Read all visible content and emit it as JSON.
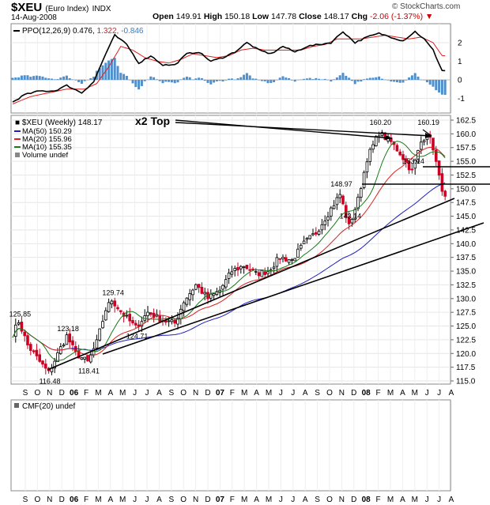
{
  "header": {
    "symbol": "$XEU",
    "index_name": "(Euro Index)",
    "exchange": "INDX",
    "date": "14-Aug-2008",
    "open_label": "Open",
    "open_value": "149.91",
    "high_label": "High",
    "high_value": "150.18",
    "low_label": "Low",
    "low_value": "147.78",
    "close_label": "Close",
    "close_value": "148.17",
    "chg_label": "Chg",
    "chg_value": "-2.06 (-1.37%)",
    "logo": "© StockCharts.com"
  },
  "ppo_legend": {
    "name": "PPO(12,26,9)",
    "v1": "0.476,",
    "v2": "1.322,",
    "v3": "-0.846"
  },
  "price_legend": {
    "title": "$XEU (Weekly) 148.17",
    "ma50": "MA(50) 150.29",
    "ma20": "MA(20) 155.96",
    "ma10": "MA(10) 155.35",
    "volume": "Volume undef"
  },
  "cmf_legend": "CMF(20) undef",
  "annotation": "x2 Top",
  "colors": {
    "up": "#000000",
    "down": "#cc0022",
    "ma50": "#1f1fbf",
    "ma20": "#dd2020",
    "ma10": "#1a7a1a",
    "hist": "#4f8fcc",
    "ppo_signal": "#dd2020"
  },
  "chart_data": {
    "type": "candlestick",
    "x_labels": [
      "S",
      "O",
      "N",
      "D",
      "06",
      "F",
      "M",
      "A",
      "M",
      "J",
      "J",
      "A",
      "S",
      "O",
      "N",
      "D",
      "07",
      "F",
      "M",
      "A",
      "M",
      "J",
      "J",
      "A",
      "S",
      "O",
      "N",
      "D",
      "08",
      "F",
      "M",
      "A",
      "M",
      "J",
      "J",
      "A"
    ],
    "year_labels": [
      "06",
      "07",
      "08"
    ],
    "price_axis": {
      "ylim": [
        115.0,
        162.5
      ],
      "ticks": [
        "162.5",
        "160.0",
        "157.5",
        "155.0",
        "152.5",
        "150.0",
        "147.5",
        "145.0",
        "142.5",
        "140.0",
        "137.5",
        "135.0",
        "132.5",
        "130.0",
        "127.5",
        "125.0",
        "122.5",
        "120.0",
        "117.5",
        "115.0"
      ]
    },
    "ppo_axis": {
      "ylim": [
        -1.6,
        3.0
      ],
      "ticks": [
        "2",
        "1",
        "0",
        "-1"
      ]
    },
    "price_labels": [
      {
        "text": "125.85",
        "week": 2,
        "value": 125.85
      },
      {
        "text": "116.48",
        "week": 12,
        "value": 116.48
      },
      {
        "text": "123.18",
        "week": 18,
        "value": 123.18
      },
      {
        "text": "118.41",
        "week": 25,
        "value": 118.41
      },
      {
        "text": "129.74",
        "week": 33,
        "value": 129.74
      },
      {
        "text": "124.71",
        "week": 41,
        "value": 124.71
      },
      {
        "text": "148.97",
        "week": 109,
        "value": 148.97
      },
      {
        "text": "143.14",
        "week": 112,
        "value": 143.14
      },
      {
        "text": "160.20",
        "week": 122,
        "value": 160.2
      },
      {
        "text": "160.19",
        "week": 138,
        "value": 160.19
      },
      {
        "text": "153.14",
        "week": 133,
        "value": 153.14
      }
    ],
    "close_anchors": [
      [
        0,
        123.5
      ],
      [
        2,
        125.85
      ],
      [
        5,
        121.5
      ],
      [
        9,
        118.5
      ],
      [
        12,
        116.48
      ],
      [
        16,
        121.0
      ],
      [
        18,
        123.18
      ],
      [
        21,
        120.0
      ],
      [
        25,
        118.41
      ],
      [
        28,
        122.0
      ],
      [
        31,
        128.0
      ],
      [
        33,
        129.74
      ],
      [
        37,
        127.0
      ],
      [
        41,
        124.71
      ],
      [
        45,
        127.5
      ],
      [
        50,
        126.0
      ],
      [
        54,
        125.5
      ],
      [
        57,
        129.5
      ],
      [
        61,
        132.5
      ],
      [
        65,
        130.0
      ],
      [
        69,
        131.5
      ],
      [
        73,
        135.0
      ],
      [
        77,
        136.0
      ],
      [
        81,
        134.5
      ],
      [
        85,
        135.0
      ],
      [
        89,
        137.5
      ],
      [
        93,
        137.0
      ],
      [
        97,
        140.0
      ],
      [
        101,
        142.0
      ],
      [
        105,
        145.5
      ],
      [
        109,
        148.97
      ],
      [
        112,
        143.14
      ],
      [
        115,
        148.0
      ],
      [
        118,
        155.5
      ],
      [
        122,
        160.2
      ],
      [
        126,
        158.5
      ],
      [
        129,
        156.5
      ],
      [
        133,
        153.14
      ],
      [
        136,
        158.5
      ],
      [
        138,
        160.19
      ],
      [
        140,
        157.5
      ],
      [
        142,
        152.0
      ],
      [
        144,
        148.17
      ]
    ],
    "ppo_anchors": [
      [
        0,
        -1.2
      ],
      [
        4,
        -0.8
      ],
      [
        9,
        -0.6
      ],
      [
        14,
        -0.6
      ],
      [
        18,
        -0.3
      ],
      [
        23,
        -0.7
      ],
      [
        27,
        -0.1
      ],
      [
        31,
        1.4
      ],
      [
        34,
        2.4
      ],
      [
        38,
        1.9
      ],
      [
        42,
        0.9
      ],
      [
        46,
        1.3
      ],
      [
        50,
        0.8
      ],
      [
        54,
        0.8
      ],
      [
        58,
        1.4
      ],
      [
        62,
        1.5
      ],
      [
        66,
        1.0
      ],
      [
        70,
        1.2
      ],
      [
        74,
        1.5
      ],
      [
        78,
        2.0
      ],
      [
        82,
        1.6
      ],
      [
        86,
        1.4
      ],
      [
        90,
        1.8
      ],
      [
        94,
        1.5
      ],
      [
        98,
        1.8
      ],
      [
        102,
        1.9
      ],
      [
        106,
        2.0
      ],
      [
        110,
        2.6
      ],
      [
        114,
        2.0
      ],
      [
        118,
        2.3
      ],
      [
        122,
        2.5
      ],
      [
        126,
        2.3
      ],
      [
        130,
        2.1
      ],
      [
        134,
        2.6
      ],
      [
        137,
        2.2
      ],
      [
        140,
        1.6
      ],
      [
        143,
        0.5
      ]
    ],
    "signal_anchors": [
      [
        0,
        -1.3
      ],
      [
        6,
        -0.9
      ],
      [
        12,
        -0.7
      ],
      [
        18,
        -0.5
      ],
      [
        24,
        -0.5
      ],
      [
        28,
        -0.2
      ],
      [
        32,
        0.7
      ],
      [
        36,
        1.8
      ],
      [
        40,
        1.6
      ],
      [
        44,
        1.2
      ],
      [
        48,
        1.0
      ],
      [
        52,
        0.9
      ],
      [
        56,
        1.1
      ],
      [
        60,
        1.4
      ],
      [
        64,
        1.3
      ],
      [
        68,
        1.2
      ],
      [
        72,
        1.3
      ],
      [
        76,
        1.6
      ],
      [
        80,
        1.7
      ],
      [
        84,
        1.6
      ],
      [
        88,
        1.6
      ],
      [
        92,
        1.6
      ],
      [
        96,
        1.6
      ],
      [
        100,
        1.8
      ],
      [
        104,
        1.9
      ],
      [
        108,
        2.2
      ],
      [
        112,
        2.2
      ],
      [
        116,
        2.2
      ],
      [
        120,
        2.3
      ],
      [
        124,
        2.4
      ],
      [
        128,
        2.3
      ],
      [
        132,
        2.2
      ],
      [
        136,
        2.3
      ],
      [
        140,
        2.0
      ],
      [
        143,
        1.3
      ]
    ]
  }
}
